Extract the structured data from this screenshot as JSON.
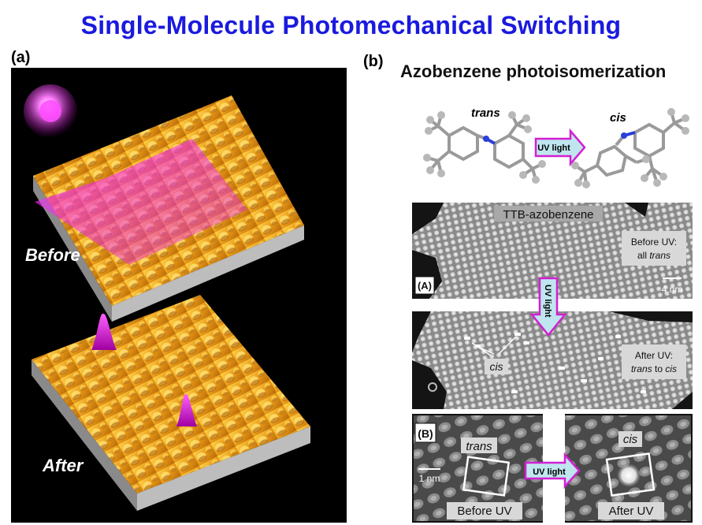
{
  "title": "Single-Molecule Photomechanical Switching",
  "panel_a": {
    "label": "(a)",
    "before": "Before",
    "after": "After"
  },
  "panel_b": {
    "label": "(b)",
    "subtitle": "Azobenzene photoisomerization",
    "molecules": {
      "trans": "trans",
      "cis": "cis",
      "arrow": "UV light"
    },
    "stm_A": {
      "tag": "(A)",
      "compound": "TTB-azobenzene",
      "before_line1": "Before UV:",
      "before_line2_prefix": "all ",
      "before_line2_em": "trans",
      "scale": "4 nm",
      "arrow": "UV light",
      "cis_label": "cis",
      "after_line1": "After UV:",
      "after_line2_em1": "trans",
      "after_line2_mid": " to ",
      "after_line2_em2": "cis"
    },
    "stm_B": {
      "tag": "(B)",
      "trans": "trans",
      "cis": "cis",
      "scale": "1 nm",
      "arrow": "UV light",
      "before": "Before UV",
      "after": "After UV"
    }
  },
  "colors": {
    "title": "#1a1adf",
    "surface": "#e8a020",
    "laser": "#e020e0",
    "arrow_fill": "#bfe6ee",
    "arrow_stroke": "#d21fd2"
  }
}
